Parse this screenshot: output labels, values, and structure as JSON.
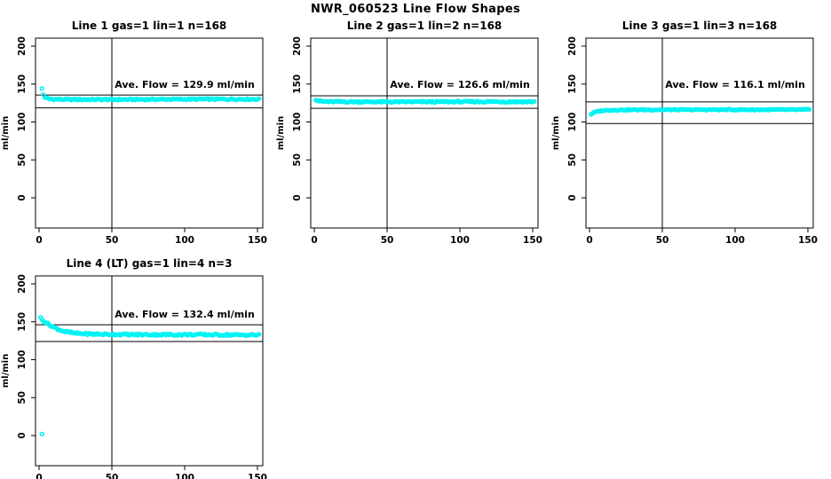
{
  "title": "NWR_060523  Line Flow Shapes",
  "colors": {
    "points": "#00F2F2",
    "axis": "#000000",
    "background": "#FFFFFF"
  },
  "chart_data": [
    {
      "type": "scatter",
      "title": "Line 1 gas=1 lin=1 n=168",
      "annotation": "Ave. Flow =  129.9  ml/min",
      "ave_flow": 129.9,
      "n": 168,
      "ylabel": "ml/min",
      "xlabel": "",
      "yticks": [
        0,
        50,
        100,
        150,
        200
      ],
      "xticks": [
        0,
        50,
        100,
        150
      ],
      "ylim": [
        0,
        210
      ],
      "xlim": [
        0,
        153
      ],
      "vline_x": 50,
      "ref_lines": [
        135.5,
        118.5
      ],
      "keypoints": [
        [
          2,
          144
        ],
        [
          3,
          136
        ],
        [
          4,
          132.5
        ],
        [
          6,
          130.8
        ],
        [
          10,
          130
        ],
        [
          20,
          129.6
        ],
        [
          60,
          129.6
        ],
        [
          110,
          130.1
        ],
        [
          151,
          130
        ]
      ],
      "noise": 0.9,
      "x_start": 2,
      "x_end": 151,
      "outliers": []
    },
    {
      "type": "scatter",
      "title": "Line 2 gas=1 lin=2 n=168",
      "annotation": "Ave. Flow =  126.6  ml/min",
      "ave_flow": 126.6,
      "n": 168,
      "ylabel": "ml/min",
      "xlabel": "",
      "yticks": [
        0,
        50,
        100,
        150,
        200
      ],
      "xticks": [
        0,
        50,
        100,
        150
      ],
      "ylim": [
        0,
        210
      ],
      "xlim": [
        0,
        153
      ],
      "vline_x": 50,
      "ref_lines": [
        134.5,
        118.0
      ],
      "keypoints": [
        [
          1,
          129.5
        ],
        [
          3,
          127.8
        ],
        [
          6,
          127
        ],
        [
          12,
          126.7
        ],
        [
          60,
          126.5
        ],
        [
          110,
          126.8
        ],
        [
          151,
          126.6
        ]
      ],
      "noise": 0.9,
      "x_start": 1,
      "x_end": 151,
      "outliers": []
    },
    {
      "type": "scatter",
      "title": "Line 3 gas=1 lin=3 n=168",
      "annotation": "Ave. Flow =  116.1  ml/min",
      "ave_flow": 116.1,
      "n": 168,
      "ylabel": "ml/min",
      "xlabel": "",
      "yticks": [
        0,
        50,
        100,
        150,
        200
      ],
      "xticks": [
        0,
        50,
        100,
        150
      ],
      "ylim": [
        0,
        210
      ],
      "xlim": [
        0,
        153
      ],
      "vline_x": 50,
      "ref_lines": [
        126.5,
        98.0
      ],
      "keypoints": [
        [
          1,
          110
        ],
        [
          2,
          111.5
        ],
        [
          4,
          113
        ],
        [
          7,
          114.5
        ],
        [
          12,
          115.5
        ],
        [
          25,
          116
        ],
        [
          80,
          116.2
        ],
        [
          151,
          116.2
        ]
      ],
      "noise": 0.7,
      "x_start": 1,
      "x_end": 151,
      "outliers": []
    },
    {
      "type": "scatter",
      "title": "Line 4 (LT) gas=1 lin=4 n=3",
      "annotation": "Ave. Flow =  132.4  ml/min",
      "ave_flow": 132.4,
      "n": 3,
      "ylabel": "ml/min",
      "xlabel": "",
      "yticks": [
        0,
        50,
        100,
        150,
        200
      ],
      "xticks": [
        0,
        50,
        100,
        150
      ],
      "ylim": [
        0,
        210
      ],
      "xlim": [
        0,
        153
      ],
      "vline_x": 50,
      "ref_lines": [
        146.0,
        124.0
      ],
      "keypoints": [
        [
          1,
          155
        ],
        [
          2,
          153
        ],
        [
          4,
          150
        ],
        [
          7,
          146
        ],
        [
          10,
          143
        ],
        [
          14,
          139.5
        ],
        [
          18,
          137
        ],
        [
          24,
          135
        ],
        [
          32,
          134
        ],
        [
          45,
          133.5
        ],
        [
          70,
          133
        ],
        [
          110,
          133
        ],
        [
          151,
          132.5
        ]
      ],
      "noise": 1.2,
      "x_start": 1,
      "x_end": 151,
      "outliers": [
        [
          2,
          2
        ]
      ]
    }
  ]
}
